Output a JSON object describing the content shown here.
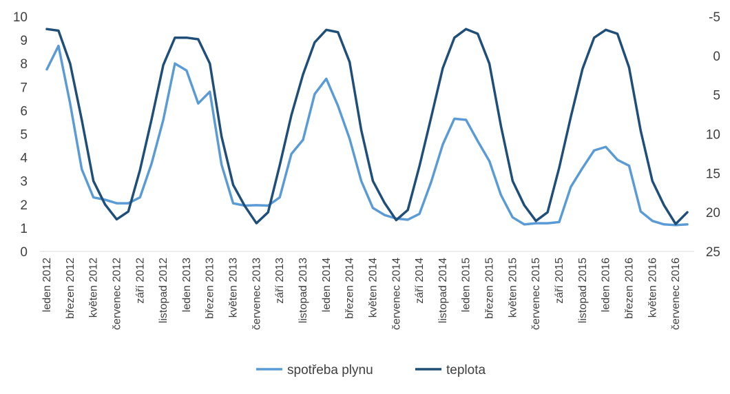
{
  "chart_data": {
    "type": "line",
    "title": "",
    "xlabel": "",
    "ylabel": "",
    "y2label": "",
    "x_tick_labels": [
      "leden 2012",
      "březen 2012",
      "květen 2012",
      "červenec 2012",
      "září 2012",
      "listopad 2012",
      "leden 2013",
      "březen 2013",
      "květen 2013",
      "červenec 2013",
      "září 2013",
      "listopad 2013",
      "leden 2014",
      "březen 2014",
      "květen 2014",
      "červenec 2014",
      "září 2014",
      "listopad 2014",
      "leden 2015",
      "březen 2015",
      "květen 2015",
      "červenec 2015",
      "září 2015",
      "listopad 2015",
      "leden 2016",
      "březen 2016",
      "květen 2016",
      "červenec 2016"
    ],
    "y_left": {
      "min": 0,
      "max": 10,
      "step": 1,
      "ticks": [
        "0",
        "1",
        "2",
        "3",
        "4",
        "5",
        "6",
        "7",
        "8",
        "9",
        "10"
      ]
    },
    "y_right": {
      "min": -5,
      "max": 25,
      "step": 5,
      "inverted": true,
      "ticks": [
        "-5",
        "0",
        "5",
        "10",
        "15",
        "20",
        "25"
      ]
    },
    "legend_position": "bottom",
    "grid": false,
    "series": [
      {
        "name": "spotřeba plynu",
        "axis": "left",
        "color": "#5b9bd5",
        "values": [
          7.75,
          8.75,
          6.3,
          3.5,
          2.3,
          2.2,
          2.05,
          2.05,
          2.3,
          3.75,
          5.6,
          8.0,
          7.7,
          6.3,
          6.8,
          3.7,
          2.05,
          1.95,
          1.97,
          1.95,
          2.3,
          4.15,
          4.75,
          6.7,
          7.35,
          6.2,
          4.8,
          3.0,
          1.85,
          1.55,
          1.4,
          1.35,
          1.6,
          2.95,
          4.55,
          5.65,
          5.6,
          4.7,
          3.85,
          2.4,
          1.45,
          1.15,
          1.2,
          1.2,
          1.25,
          2.75,
          3.55,
          4.3,
          4.45,
          3.9,
          3.65,
          1.7,
          1.3,
          1.15,
          1.12,
          1.15
        ]
      },
      {
        "name": "teplota",
        "axis": "right",
        "color": "#1f4e79",
        "values": [
          -3.4,
          -3.2,
          1.0,
          8.2,
          16.0,
          19.0,
          20.9,
          19.9,
          14.6,
          8.1,
          1.2,
          -2.3,
          -2.3,
          -2.1,
          1.0,
          10.3,
          16.5,
          19.2,
          21.4,
          20.0,
          14.0,
          7.6,
          2.4,
          -1.7,
          -3.3,
          -3.0,
          0.8,
          9.5,
          16.0,
          18.8,
          21.0,
          19.7,
          14.1,
          7.9,
          1.6,
          -2.3,
          -3.4,
          -2.8,
          1.0,
          9.0,
          16.0,
          19.1,
          21.1,
          20.0,
          14.3,
          7.8,
          1.7,
          -2.3,
          -3.3,
          -2.8,
          1.5,
          9.6,
          16.0,
          19.1,
          21.5,
          20.0
        ]
      }
    ]
  }
}
